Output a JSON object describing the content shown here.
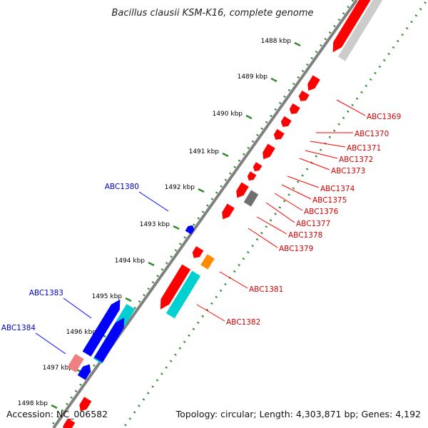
{
  "title": "Bacillus clausii KSM-K16, complete genome",
  "ticks": [
    "1488 kbp",
    "1489 kbp",
    "1490 kbp",
    "1491 kbp",
    "1492 kbp",
    "1493 kbp",
    "1494 kbp",
    "1495 kbp",
    "1496 kbp",
    "1497 kbp",
    "1498 kbp"
  ],
  "reverse_labels": [
    "ABC1369",
    "ABC1370",
    "ABC1371",
    "ABC1372",
    "ABC1373",
    "ABC1374",
    "ABC1375",
    "ABC1376",
    "ABC1377",
    "ABC1378",
    "ABC1379",
    "ABC1381",
    "ABC1382"
  ],
  "forward_labels": [
    "ABC1380",
    "ABC1383",
    "ABC1384"
  ],
  "footer": {
    "accession": "Accession: NC_006582",
    "summary": "Topology: circular; Length: 4,303,871 bp; Genes: 4,192"
  },
  "colors": {
    "reverse_gene": "#ff0000",
    "forward_gene": "#0000ff",
    "cyan_gene": "#00d0d0",
    "orange_gene": "#ff8c00",
    "pink_gene": "#f08080",
    "gray_gene": "#707070",
    "light_gray_gene": "#cccccc",
    "backbone": "#808080",
    "dotted_line": "#2e8b2e",
    "reverse_label": "#d40000",
    "forward_label": "#0000cc"
  }
}
